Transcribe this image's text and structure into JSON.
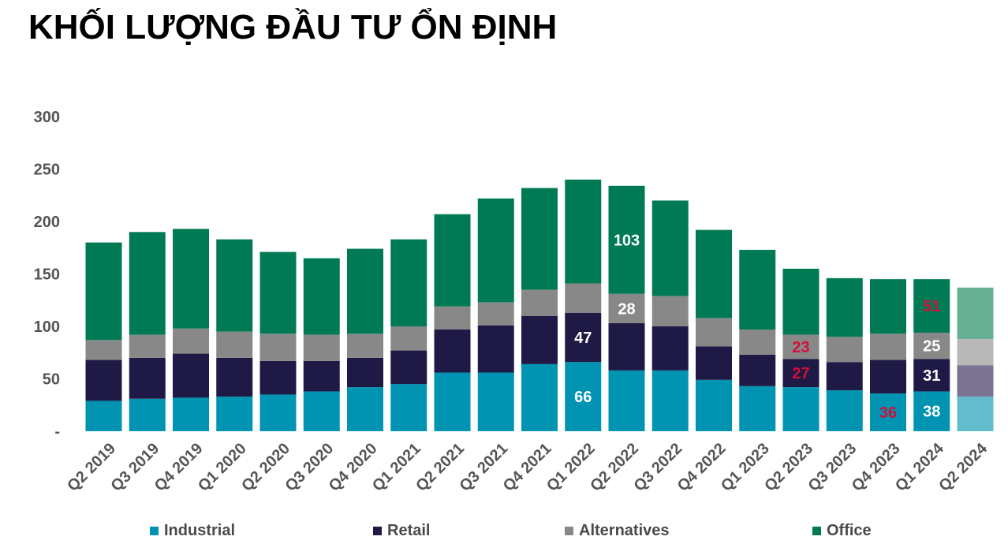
{
  "title": "KHỐI LƯỢNG ĐẦU TƯ ỔN ĐỊNH",
  "colors": {
    "Industrial": "#0093B2",
    "Retail": "#1E1A45",
    "Alternatives": "#888888",
    "Office": "#007A55",
    "Industrial_forecast": "#63BCCC",
    "Retail_forecast": "#7A7391",
    "Alternatives_forecast": "#B8B8B8",
    "Office_forecast": "#66AE94",
    "axis_text": "#555555",
    "label_white": "#FFFFFF",
    "label_red": "#D0103A"
  },
  "chart_data": {
    "type": "bar",
    "stacked": true,
    "title": "KHỐI LƯỢNG ĐẦU TƯ ỔN ĐỊNH",
    "xlabel": "",
    "ylabel": "",
    "ylim": [
      0,
      300
    ],
    "yticks": [
      0,
      50,
      100,
      150,
      200,
      250,
      300
    ],
    "ytick_labels": [
      "-",
      "50",
      "100",
      "150",
      "200",
      "250",
      "300"
    ],
    "grid": false,
    "legend_position": "bottom",
    "categories": [
      "Q2 2019",
      "Q3 2019",
      "Q4 2019",
      "Q1 2020",
      "Q2 2020",
      "Q3 2020",
      "Q4 2020",
      "Q1 2021",
      "Q2 2021",
      "Q3 2021",
      "Q4 2021",
      "Q1 2022",
      "Q2 2022",
      "Q3 2022",
      "Q4 2022",
      "Q1 2023",
      "Q2 2023",
      "Q3 2023",
      "Q4 2023",
      "Q1 2024",
      "Q2 2024"
    ],
    "forecast_categories": [
      "Q2 2024"
    ],
    "series": [
      {
        "name": "Industrial",
        "values": [
          29,
          31,
          32,
          33,
          35,
          38,
          42,
          45,
          56,
          56,
          64,
          66,
          58,
          58,
          49,
          43,
          42,
          39,
          36,
          38,
          33
        ]
      },
      {
        "name": "Retail",
        "values": [
          39,
          39,
          42,
          37,
          32,
          29,
          28,
          32,
          41,
          45,
          46,
          47,
          45,
          42,
          32,
          30,
          27,
          27,
          32,
          31,
          30
        ]
      },
      {
        "name": "Alternatives",
        "values": [
          19,
          22,
          24,
          25,
          26,
          25,
          23,
          23,
          22,
          22,
          25,
          28,
          28,
          29,
          27,
          24,
          23,
          24,
          25,
          25,
          25
        ]
      },
      {
        "name": "Office",
        "values": [
          93,
          98,
          95,
          88,
          78,
          73,
          81,
          83,
          88,
          99,
          97,
          99,
          103,
          91,
          84,
          76,
          63,
          56,
          52,
          51,
          49
        ]
      }
    ],
    "data_labels": [
      {
        "category": "Q1 2022",
        "series": "Industrial",
        "text": "66",
        "color": "white"
      },
      {
        "category": "Q1 2022",
        "series": "Retail",
        "text": "47",
        "color": "white"
      },
      {
        "category": "Q2 2022",
        "series": "Alternatives",
        "text": "28",
        "color": "white"
      },
      {
        "category": "Q2 2022",
        "series": "Office",
        "text": "103",
        "color": "white"
      },
      {
        "category": "Q2 2023",
        "series": "Retail",
        "text": "27",
        "color": "red"
      },
      {
        "category": "Q2 2023",
        "series": "Alternatives",
        "text": "23",
        "color": "red"
      },
      {
        "category": "Q4 2023",
        "series": "Industrial",
        "text": "36",
        "color": "red"
      },
      {
        "category": "Q1 2024",
        "series": "Industrial",
        "text": "38",
        "color": "white"
      },
      {
        "category": "Q1 2024",
        "series": "Retail",
        "text": "31",
        "color": "white"
      },
      {
        "category": "Q1 2024",
        "series": "Alternatives",
        "text": "25",
        "color": "white"
      },
      {
        "category": "Q1 2024",
        "series": "Office",
        "text": "51",
        "color": "red"
      }
    ]
  },
  "legend": [
    {
      "label": "Industrial",
      "color": "#0093B2"
    },
    {
      "label": "Retail",
      "color": "#1E1A45"
    },
    {
      "label": "Alternatives",
      "color": "#888888"
    },
    {
      "label": "Office",
      "color": "#007A55"
    }
  ]
}
